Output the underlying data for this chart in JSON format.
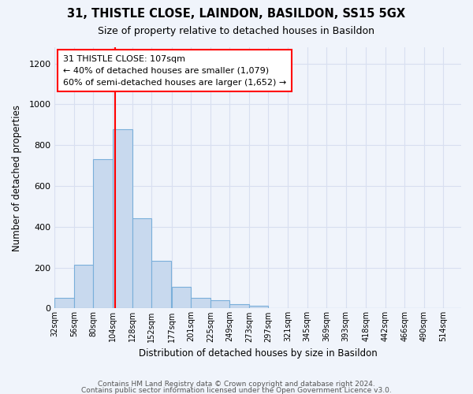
{
  "title1": "31, THISTLE CLOSE, LAINDON, BASILDON, SS15 5GX",
  "title2": "Size of property relative to detached houses in Basildon",
  "xlabel": "Distribution of detached houses by size in Basildon",
  "ylabel": "Number of detached properties",
  "bar_color": "#c8d9ee",
  "bar_edge_color": "#7aafda",
  "bg_color": "#f0f4fb",
  "grid_color": "#d8dff0",
  "vline_x": 107,
  "vline_color": "red",
  "annotation_lines": [
    "31 THISTLE CLOSE: 107sqm",
    "← 40% of detached houses are smaller (1,079)",
    "60% of semi-detached houses are larger (1,652) →"
  ],
  "annotation_box_color": "#ffffff",
  "annotation_border_color": "red",
  "categories": [
    "32sqm",
    "56sqm",
    "80sqm",
    "104sqm",
    "128sqm",
    "152sqm",
    "177sqm",
    "201sqm",
    "225sqm",
    "249sqm",
    "273sqm",
    "297sqm",
    "321sqm",
    "345sqm",
    "369sqm",
    "393sqm",
    "418sqm",
    "442sqm",
    "466sqm",
    "490sqm",
    "514sqm"
  ],
  "bin_edges": [
    32,
    56,
    80,
    104,
    128,
    152,
    177,
    201,
    225,
    249,
    273,
    297,
    321,
    345,
    369,
    393,
    418,
    442,
    466,
    490,
    514
  ],
  "bin_width": 24,
  "values": [
    50,
    215,
    730,
    880,
    440,
    235,
    105,
    50,
    40,
    20,
    15,
    0,
    0,
    0,
    0,
    0,
    0,
    0,
    0,
    0,
    0
  ],
  "ylim": [
    0,
    1280
  ],
  "yticks": [
    0,
    200,
    400,
    600,
    800,
    1000,
    1200
  ],
  "footer_line1": "Contains HM Land Registry data © Crown copyright and database right 2024.",
  "footer_line2": "Contains public sector information licensed under the Open Government Licence v3.0."
}
